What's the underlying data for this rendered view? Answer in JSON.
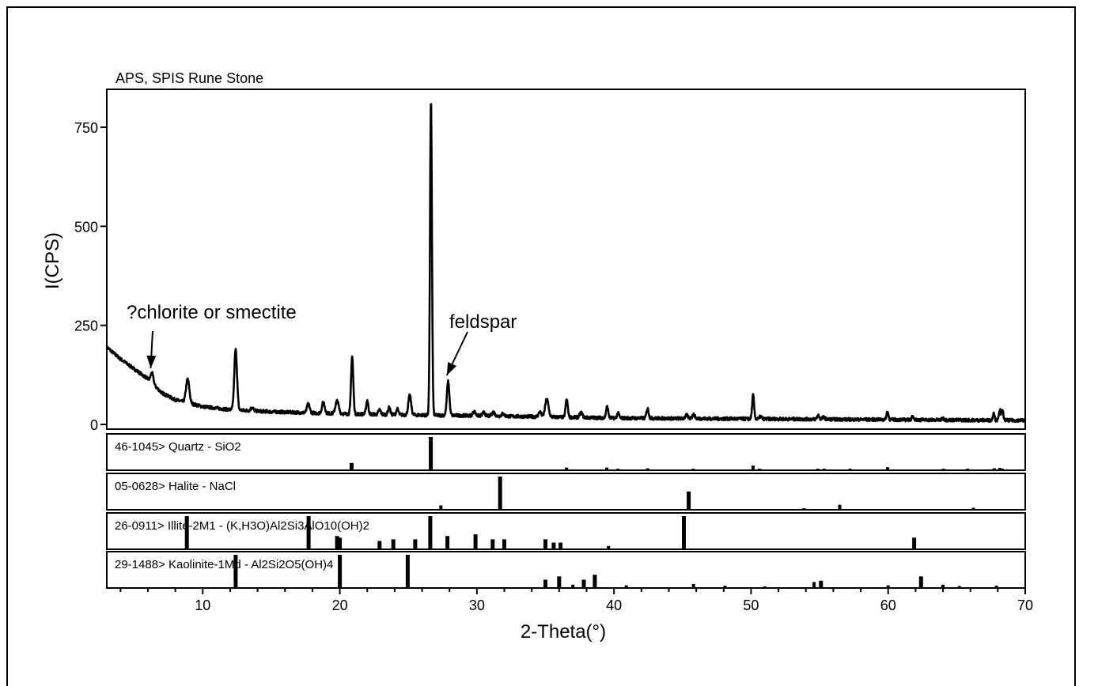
{
  "chart_data": {
    "type": "line",
    "title": "APS, SPIS Rune Stone",
    "xlabel": "2-Theta(°)",
    "ylabel": "I(CPS)",
    "xlim": [
      3,
      70
    ],
    "ylim": [
      0,
      800
    ],
    "x_ticks": [
      10,
      20,
      30,
      40,
      50,
      60,
      70
    ],
    "y_ticks": [
      0,
      250,
      500,
      750
    ],
    "grid": false,
    "annotations": [
      {
        "text": "?chlorite or smectite",
        "x": 6.2,
        "y": 110
      },
      {
        "text": "feldspar",
        "x": 27.8,
        "y": 110
      }
    ],
    "pattern": {
      "background": [
        [
          3,
          195
        ],
        [
          4,
          165
        ],
        [
          5,
          140
        ],
        [
          6,
          115
        ],
        [
          7,
          80
        ],
        [
          8,
          62
        ],
        [
          10,
          45
        ],
        [
          12,
          37
        ],
        [
          15,
          32
        ],
        [
          20,
          27
        ],
        [
          25,
          24
        ],
        [
          30,
          22
        ],
        [
          40,
          16
        ],
        [
          50,
          14
        ],
        [
          60,
          12
        ],
        [
          70,
          10
        ]
      ],
      "peaks": [
        [
          6.3,
          25,
          0.1
        ],
        [
          8.9,
          60,
          0.12
        ],
        [
          12.4,
          152,
          0.1
        ],
        [
          13.6,
          8,
          0.1
        ],
        [
          17.7,
          22,
          0.1
        ],
        [
          18.8,
          28,
          0.1
        ],
        [
          19.8,
          32,
          0.12
        ],
        [
          20.9,
          145,
          0.08
        ],
        [
          22.0,
          35,
          0.08
        ],
        [
          22.9,
          12,
          0.08
        ],
        [
          23.6,
          18,
          0.08
        ],
        [
          24.2,
          14,
          0.08
        ],
        [
          25.1,
          50,
          0.1
        ],
        [
          26.65,
          790,
          0.07
        ],
        [
          27.9,
          85,
          0.09
        ],
        [
          29.8,
          10,
          0.1
        ],
        [
          30.5,
          8,
          0.1
        ],
        [
          31.2,
          10,
          0.1
        ],
        [
          31.9,
          6,
          0.1
        ],
        [
          34.6,
          12,
          0.1
        ],
        [
          35.1,
          45,
          0.12
        ],
        [
          36.55,
          45,
          0.08
        ],
        [
          37.6,
          12,
          0.1
        ],
        [
          39.5,
          28,
          0.08
        ],
        [
          40.3,
          12,
          0.08
        ],
        [
          42.45,
          25,
          0.08
        ],
        [
          45.3,
          8,
          0.1
        ],
        [
          45.8,
          10,
          0.1
        ],
        [
          50.15,
          60,
          0.07
        ],
        [
          50.7,
          6,
          0.08
        ],
        [
          54.9,
          10,
          0.08
        ],
        [
          55.3,
          6,
          0.08
        ],
        [
          59.95,
          20,
          0.07
        ],
        [
          61.8,
          8,
          0.08
        ],
        [
          64.0,
          4,
          0.08
        ],
        [
          67.7,
          20,
          0.06
        ],
        [
          68.15,
          28,
          0.06
        ],
        [
          68.35,
          24,
          0.06
        ]
      ]
    },
    "reference_patterns": [
      {
        "label": "46-1045> Quartz - SiO2",
        "sticks": [
          [
            20.86,
            22
          ],
          [
            26.64,
            100
          ],
          [
            36.54,
            8
          ],
          [
            39.47,
            8
          ],
          [
            40.29,
            4
          ],
          [
            42.45,
            6
          ],
          [
            45.79,
            4
          ],
          [
            50.14,
            14
          ],
          [
            50.62,
            2
          ],
          [
            54.87,
            4
          ],
          [
            55.32,
            2
          ],
          [
            57.23,
            2
          ],
          [
            59.96,
            9
          ],
          [
            64.04,
            2
          ],
          [
            65.79,
            2
          ],
          [
            67.74,
            6
          ],
          [
            68.14,
            7
          ],
          [
            68.32,
            5
          ]
        ]
      },
      {
        "label": "05-0628> Halite - NaCl",
        "sticks": [
          [
            27.37,
            13
          ],
          [
            31.69,
            100
          ],
          [
            45.45,
            55
          ],
          [
            53.86,
            2
          ],
          [
            56.47,
            15
          ],
          [
            66.22,
            6
          ]
        ]
      },
      {
        "label": "26-0911> Illite-2M1 - (K,H3O)Al2Si3AlO10(OH)2",
        "sticks": [
          [
            8.84,
            100
          ],
          [
            17.72,
            100
          ],
          [
            19.8,
            40
          ],
          [
            20.0,
            35
          ],
          [
            22.9,
            25
          ],
          [
            23.9,
            30
          ],
          [
            25.5,
            30
          ],
          [
            26.6,
            100
          ],
          [
            27.85,
            40
          ],
          [
            29.9,
            45
          ],
          [
            31.15,
            30
          ],
          [
            32.0,
            30
          ],
          [
            35.0,
            30
          ],
          [
            35.6,
            20
          ],
          [
            36.1,
            20
          ],
          [
            39.6,
            10
          ],
          [
            45.1,
            100
          ],
          [
            61.9,
            35
          ]
        ]
      },
      {
        "label": "29-1488> Kaolinite-1Md - Al2Si2O5(OH)4",
        "sticks": [
          [
            12.4,
            100
          ],
          [
            20.0,
            100
          ],
          [
            24.95,
            100
          ],
          [
            35.0,
            25
          ],
          [
            36.0,
            35
          ],
          [
            37.0,
            10
          ],
          [
            37.8,
            25
          ],
          [
            38.6,
            40
          ],
          [
            40.9,
            8
          ],
          [
            45.8,
            12
          ],
          [
            48.1,
            7
          ],
          [
            51.0,
            5
          ],
          [
            54.6,
            18
          ],
          [
            55.1,
            22
          ],
          [
            60.0,
            8
          ],
          [
            62.4,
            35
          ],
          [
            64.0,
            10
          ],
          [
            65.2,
            6
          ],
          [
            67.9,
            7
          ]
        ]
      }
    ]
  }
}
